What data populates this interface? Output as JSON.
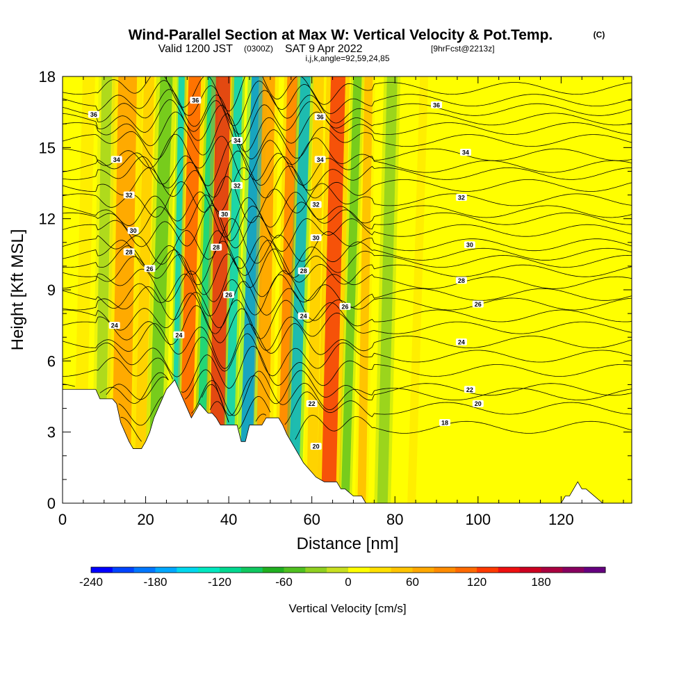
{
  "title": {
    "main": "Wind-Parallel Section at Max W: Vertical Velocity & Pot.Temp.",
    "copyright": "(C)",
    "valid_prefix": "Valid 1200 JST",
    "utc": "(0300Z)",
    "date": "SAT 9 Apr 2022",
    "forecast": "[9hrFcst@2213z]",
    "params": "i,j,k,angle=92,59,24,85"
  },
  "chart_data": {
    "type": "heatmap",
    "xlabel": "Distance [nm]",
    "ylabel": "Height [Kft MSL]",
    "xlim": [
      0,
      137
    ],
    "ylim": [
      0,
      18
    ],
    "x_ticks": [
      0,
      20,
      40,
      60,
      80,
      100,
      120
    ],
    "y_ticks": [
      0,
      3,
      6,
      9,
      12,
      15,
      18
    ],
    "colorbar": {
      "label": "Vertical Velocity [cm/s]",
      "range": [
        -240,
        240
      ],
      "ticks": [
        -240,
        -180,
        -120,
        -60,
        0,
        60,
        120,
        180
      ],
      "colors": [
        "#0000ff",
        "#0044ff",
        "#0077ff",
        "#00a8ff",
        "#00d8ee",
        "#00e8c0",
        "#00d890",
        "#10c860",
        "#20b020",
        "#50c020",
        "#90d020",
        "#c8e020",
        "#ffff00",
        "#ffe000",
        "#ffc400",
        "#ffa800",
        "#ff8c00",
        "#ff6a00",
        "#ff3a00",
        "#ee1010",
        "#cc0020",
        "#aa0040",
        "#880060",
        "#660080"
      ]
    },
    "vertical_velocity_bands": [
      {
        "x": 14,
        "w": 4.5,
        "v": 90
      },
      {
        "x": 18.5,
        "w": 2.5,
        "v": 45
      },
      {
        "x": 22,
        "w": 3,
        "v": -45
      },
      {
        "x": 27,
        "w": 1.5,
        "v": -150
      },
      {
        "x": 29.5,
        "w": 3,
        "v": 120
      },
      {
        "x": 33,
        "w": 2,
        "v": -135
      },
      {
        "x": 37,
        "w": 3.5,
        "v": 165
      },
      {
        "x": 40,
        "w": 2,
        "v": -150
      },
      {
        "x": 44,
        "w": 3,
        "v": -190
      },
      {
        "x": 48,
        "w": 3,
        "v": 95
      },
      {
        "x": 53,
        "w": 2.5,
        "v": 110
      },
      {
        "x": 55.5,
        "w": 2.5,
        "v": -170
      },
      {
        "x": 60,
        "w": 2.5,
        "v": 40
      },
      {
        "x": 64,
        "w": 3.5,
        "v": 150
      },
      {
        "x": 68,
        "w": 2,
        "v": -50
      },
      {
        "x": 72,
        "w": 2,
        "v": 60
      },
      {
        "x": 77,
        "w": 2.5,
        "v": -40
      },
      {
        "x": 84,
        "w": 2,
        "v": 35
      },
      {
        "x": 9,
        "w": 2.5,
        "v": -35
      },
      {
        "x": 4,
        "w": 3,
        "v": 35
      }
    ],
    "terrain": [
      [
        0,
        4.8
      ],
      [
        7,
        4.8
      ],
      [
        8,
        4.8
      ],
      [
        9,
        4.4
      ],
      [
        11,
        4.4
      ],
      [
        12,
        4.4
      ],
      [
        13,
        4.2
      ],
      [
        14,
        3.4
      ],
      [
        15,
        3
      ],
      [
        16,
        2.6
      ],
      [
        17,
        2.3
      ],
      [
        19,
        2.3
      ],
      [
        20,
        2.6
      ],
      [
        21,
        3
      ],
      [
        22,
        3.6
      ],
      [
        23,
        4
      ],
      [
        24,
        4.4
      ],
      [
        25,
        4.8
      ],
      [
        26,
        5
      ],
      [
        27,
        5.2
      ],
      [
        28,
        4.8
      ],
      [
        29,
        4.4
      ],
      [
        30,
        4
      ],
      [
        31,
        3.6
      ],
      [
        32,
        3.9
      ],
      [
        33,
        4.2
      ],
      [
        34,
        4
      ],
      [
        35,
        3.8
      ],
      [
        36,
        3.8
      ],
      [
        37,
        3.6
      ],
      [
        38,
        3.3
      ],
      [
        40,
        3.3
      ],
      [
        41,
        3.3
      ],
      [
        42,
        3.3
      ],
      [
        43,
        2.6
      ],
      [
        44,
        2.6
      ],
      [
        45,
        3.3
      ],
      [
        46,
        3.3
      ],
      [
        48,
        3.3
      ],
      [
        49,
        3.6
      ],
      [
        51,
        3.6
      ],
      [
        52,
        3.6
      ],
      [
        53,
        3.3
      ],
      [
        54,
        2.9
      ],
      [
        55,
        2.6
      ],
      [
        56,
        2.3
      ],
      [
        57,
        2
      ],
      [
        58,
        1.7
      ],
      [
        59,
        1.5
      ],
      [
        60,
        1.3
      ],
      [
        61,
        1.1
      ],
      [
        62,
        1
      ],
      [
        63,
        0.9
      ],
      [
        64,
        0.9
      ],
      [
        65,
        0.9
      ],
      [
        66,
        0.9
      ],
      [
        67,
        0.6
      ],
      [
        68,
        0.6
      ],
      [
        70,
        0.3
      ],
      [
        72,
        0.3
      ],
      [
        73,
        0
      ],
      [
        120,
        0
      ],
      [
        121,
        0.3
      ],
      [
        122,
        0.3
      ],
      [
        123,
        0.6
      ],
      [
        124,
        0.9
      ],
      [
        125,
        0.6
      ],
      [
        126,
        0.6
      ],
      [
        128,
        0.3
      ],
      [
        130,
        0
      ],
      [
        137,
        0
      ]
    ],
    "potential_temperature": {
      "levels": [
        18,
        20,
        22,
        24,
        26,
        28,
        30,
        32,
        34,
        36
      ],
      "labels": [
        {
          "x": 7.5,
          "y": 16.4,
          "t": "36"
        },
        {
          "x": 32,
          "y": 17.0,
          "t": "36"
        },
        {
          "x": 62,
          "y": 16.3,
          "t": "36"
        },
        {
          "x": 90,
          "y": 16.8,
          "t": "36"
        },
        {
          "x": 13,
          "y": 14.5,
          "t": "34"
        },
        {
          "x": 42,
          "y": 15.3,
          "t": "34"
        },
        {
          "x": 62,
          "y": 14.5,
          "t": "34"
        },
        {
          "x": 97,
          "y": 14.8,
          "t": "34"
        },
        {
          "x": 16,
          "y": 13.0,
          "t": "32"
        },
        {
          "x": 42,
          "y": 13.4,
          "t": "32"
        },
        {
          "x": 61,
          "y": 12.6,
          "t": "32"
        },
        {
          "x": 96,
          "y": 12.9,
          "t": "32"
        },
        {
          "x": 17,
          "y": 11.5,
          "t": "30"
        },
        {
          "x": 39,
          "y": 12.2,
          "t": "30"
        },
        {
          "x": 61,
          "y": 11.2,
          "t": "30"
        },
        {
          "x": 98,
          "y": 10.9,
          "t": "30"
        },
        {
          "x": 16,
          "y": 10.6,
          "t": "28"
        },
        {
          "x": 37,
          "y": 10.8,
          "t": "28"
        },
        {
          "x": 58,
          "y": 9.8,
          "t": "28"
        },
        {
          "x": 96,
          "y": 9.4,
          "t": "28"
        },
        {
          "x": 21,
          "y": 9.9,
          "t": "26"
        },
        {
          "x": 40,
          "y": 8.8,
          "t": "26"
        },
        {
          "x": 68,
          "y": 8.3,
          "t": "26"
        },
        {
          "x": 100,
          "y": 8.4,
          "t": "26"
        },
        {
          "x": 12.5,
          "y": 7.5,
          "t": "24"
        },
        {
          "x": 28,
          "y": 7.1,
          "t": "24"
        },
        {
          "x": 58,
          "y": 7.9,
          "t": "24"
        },
        {
          "x": 96,
          "y": 6.8,
          "t": "24"
        },
        {
          "x": 60,
          "y": 4.2,
          "t": "22"
        },
        {
          "x": 98,
          "y": 4.8,
          "t": "22"
        },
        {
          "x": 61,
          "y": 2.4,
          "t": "20"
        },
        {
          "x": 100,
          "y": 4.2,
          "t": "20"
        },
        {
          "x": 92,
          "y": 3.4,
          "t": "18"
        }
      ]
    }
  }
}
